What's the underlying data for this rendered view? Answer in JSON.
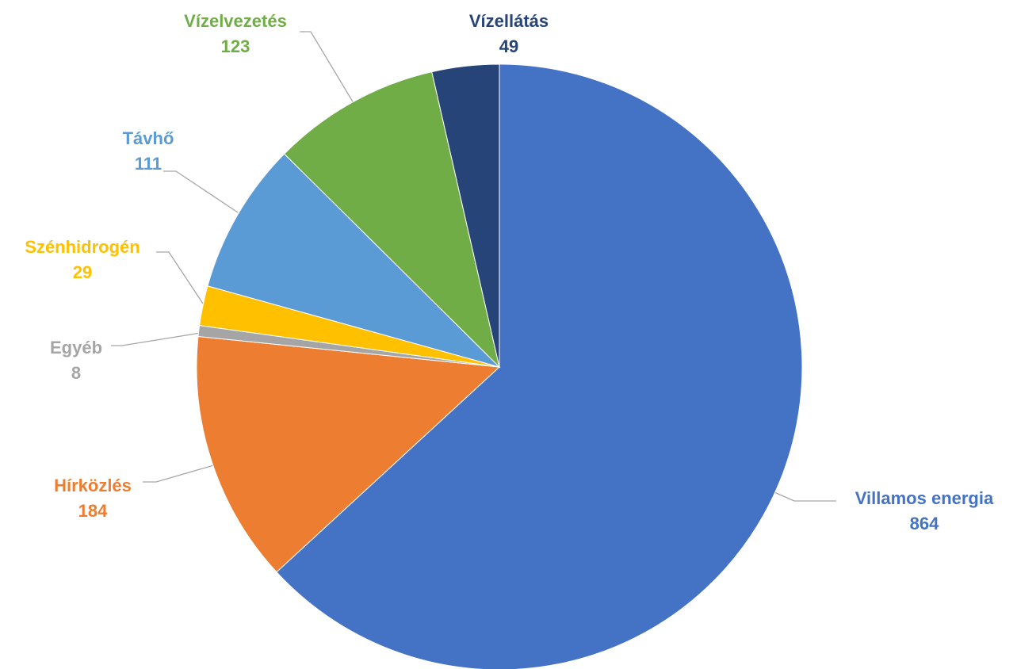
{
  "chart_data": {
    "type": "pie",
    "start_angle_deg": 0,
    "direction": "clockwise",
    "slices": [
      {
        "name": "Villamos energia",
        "value": 864,
        "color": "#4472C4"
      },
      {
        "name": "Hírközlés",
        "value": 184,
        "color": "#ED7D31"
      },
      {
        "name": "Egyéb",
        "value": 8,
        "color": "#A5A5A5"
      },
      {
        "name": "Szénhidrogén",
        "value": 29,
        "color": "#FFC000"
      },
      {
        "name": "Távhő",
        "value": 111,
        "color": "#5B9BD5"
      },
      {
        "name": "Vízelvezetés",
        "value": 123,
        "color": "#70AD47"
      },
      {
        "name": "Vízellátás",
        "value": 49,
        "color": "#264478"
      }
    ],
    "leader_line_color": "#A6A6A6"
  }
}
